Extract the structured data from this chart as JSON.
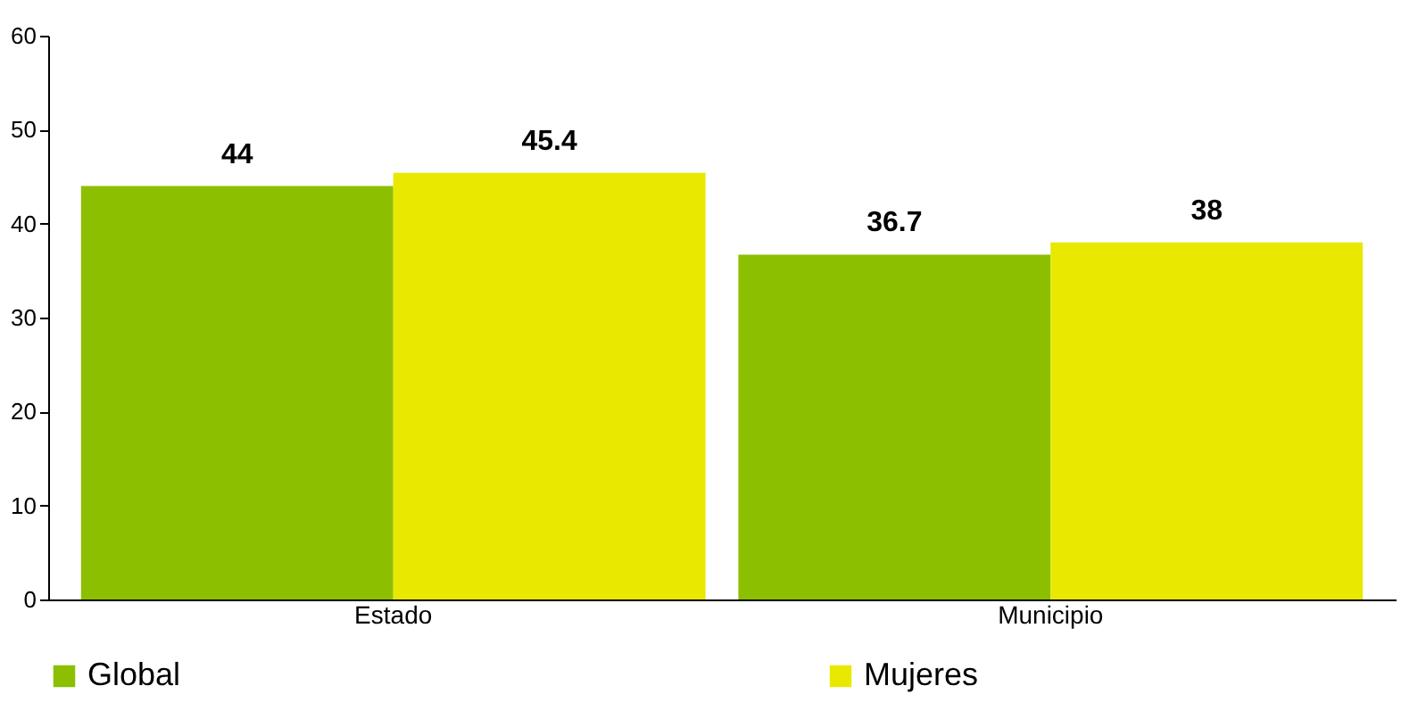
{
  "chart_data": {
    "type": "bar",
    "categories": [
      "Estado",
      "Municipio"
    ],
    "series": [
      {
        "name": "Global",
        "color": "#8cbf00",
        "values": [
          44,
          36.7
        ]
      },
      {
        "name": "Mujeres",
        "color": "#e8e800",
        "values": [
          45.4,
          38
        ]
      }
    ],
    "ylim": [
      0,
      60
    ],
    "yticks": [
      0,
      10,
      20,
      30,
      40,
      50,
      60
    ],
    "grid": false,
    "legend": "bottom",
    "data_labels": true
  }
}
